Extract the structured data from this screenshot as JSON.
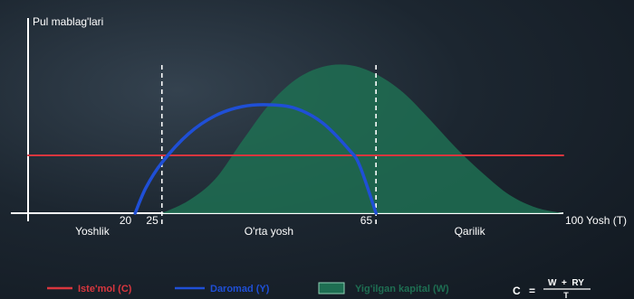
{
  "chart_data": {
    "type": "area",
    "ylabel": "Pul mablag'lari",
    "x_ticks": [
      {
        "value": 20,
        "label": "20"
      },
      {
        "value": 25,
        "label": "25"
      },
      {
        "value": 65,
        "label": "65"
      },
      {
        "value": 100,
        "label": "100 Yosh (T)"
      }
    ],
    "stages": [
      {
        "label": "Yoshlik",
        "x": 12
      },
      {
        "label": "O'rta yosh",
        "x": 45
      },
      {
        "label": "Qarilik",
        "x": 82.5
      }
    ],
    "vlines": [
      25,
      65
    ],
    "series": [
      {
        "name": "Iste'mol (C)",
        "kind": "line",
        "color": "#d9363e",
        "x": [
          0,
          100
        ],
        "y": [
          32,
          32
        ]
      },
      {
        "name": "Daromad (Y)",
        "kind": "line",
        "color": "#1f4fd6",
        "x": [
          20,
          22,
          25,
          30,
          35,
          40,
          45,
          50,
          55,
          60,
          62,
          65
        ],
        "y": [
          0,
          14,
          28,
          44,
          54,
          59,
          60,
          58,
          50,
          35,
          26,
          0
        ]
      },
      {
        "name": "Yig'ilgan kapital (W)",
        "kind": "area",
        "color": "#1e6e52",
        "x": [
          25,
          30,
          35,
          40,
          45,
          50,
          55,
          60,
          65,
          70,
          75,
          80,
          85,
          90,
          95,
          100
        ],
        "y": [
          0,
          7,
          19,
          40,
          60,
          74,
          81,
          82,
          77,
          67,
          52,
          36,
          22,
          10,
          3,
          0
        ]
      }
    ],
    "xlim": [
      0,
      100
    ],
    "ylim": [
      0,
      90
    ]
  },
  "formula": {
    "lhs": "C",
    "eq": "=",
    "num": "W  +  RY",
    "den": "T"
  }
}
